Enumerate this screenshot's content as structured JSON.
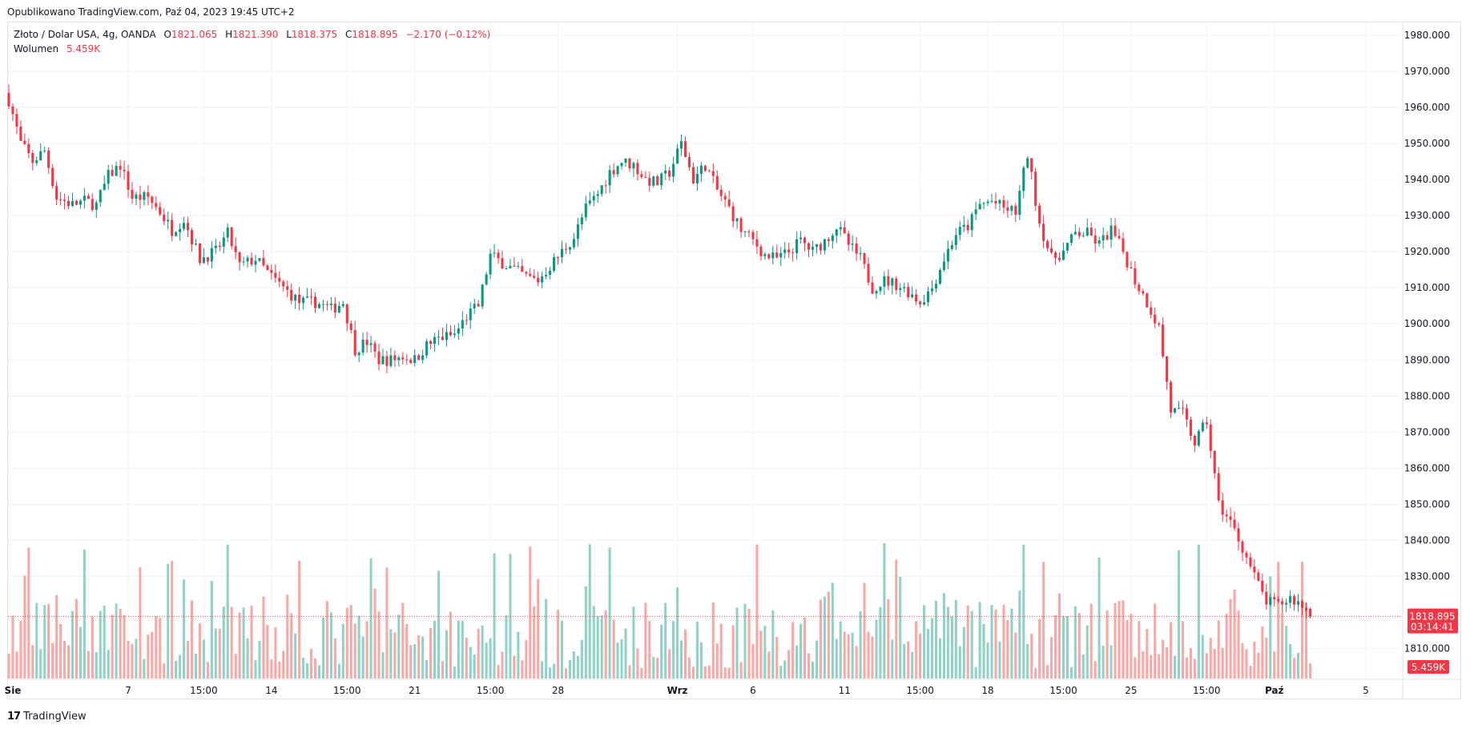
{
  "header": {
    "published": "Opublikowano TradingView.com, Paź 04, 2023 19:45 UTC+2"
  },
  "legend": {
    "symbol": "Złoto / Dolar USA, 4g, OANDA",
    "o_label": "O",
    "o_value": "1821.065",
    "h_label": "H",
    "h_value": "1821.390",
    "l_label": "L",
    "l_value": "1818.375",
    "c_label": "C",
    "c_value": "1818.895",
    "change": "−2.170 (−0.12%)",
    "volume_label": "Wolumen",
    "volume_value": "5.459K"
  },
  "footer": {
    "brand": "TradingView",
    "logo": "17"
  },
  "colors": {
    "up": "#089981",
    "down": "#f23645",
    "up_vol": "#92d2c6",
    "down_vol": "#f7a9a7",
    "grid": "#f0f3fa"
  },
  "chart_data": {
    "type": "candlestick",
    "price_axis": {
      "ticks": [
        "1980.000",
        "1970.000",
        "1960.000",
        "1950.000",
        "1940.000",
        "1930.000",
        "1920.000",
        "1910.000",
        "1900.000",
        "1890.000",
        "1880.000",
        "1870.000",
        "1860.000",
        "1850.000",
        "1840.000",
        "1830.000",
        "1810.000"
      ],
      "range": [
        1801.5,
        1983.5
      ]
    },
    "time_axis": {
      "ticks": [
        {
          "label": "Sie",
          "bold": true,
          "i": 0
        },
        {
          "label": "7",
          "bold": false,
          "i": 30
        },
        {
          "label": "15:00",
          "bold": false,
          "i": 49
        },
        {
          "label": "14",
          "bold": false,
          "i": 66
        },
        {
          "label": "15:00",
          "bold": false,
          "i": 85
        },
        {
          "label": "21",
          "bold": false,
          "i": 102
        },
        {
          "label": "15:00",
          "bold": false,
          "i": 121
        },
        {
          "label": "28",
          "bold": false,
          "i": 138
        },
        {
          "label": "Wrz",
          "bold": true,
          "i": 168
        },
        {
          "label": "6",
          "bold": false,
          "i": 187
        },
        {
          "label": "11",
          "bold": false,
          "i": 210
        },
        {
          "label": "15:00",
          "bold": false,
          "i": 229
        },
        {
          "label": "18",
          "bold": false,
          "i": 246
        },
        {
          "label": "15:00",
          "bold": false,
          "i": 265
        },
        {
          "label": "25",
          "bold": false,
          "i": 282
        },
        {
          "label": "15:00",
          "bold": false,
          "i": 301
        },
        {
          "label": "Paź",
          "bold": true,
          "i": 318
        },
        {
          "label": "5",
          "bold": false,
          "i": 341
        }
      ]
    },
    "last_price": {
      "price": "1818.895",
      "countdown": "03:14:41",
      "volume": "5.459K"
    },
    "candles": [],
    "close_path": [
      [
        0,
        1962
      ],
      [
        3,
        1950
      ],
      [
        6,
        1945
      ],
      [
        9,
        1948
      ],
      [
        12,
        1935
      ],
      [
        16,
        1933
      ],
      [
        19,
        1934
      ],
      [
        22,
        1933
      ],
      [
        25,
        1941
      ],
      [
        28,
        1944
      ],
      [
        31,
        1935
      ],
      [
        35,
        1935
      ],
      [
        38,
        1931
      ],
      [
        41,
        1926
      ],
      [
        44,
        1929
      ],
      [
        48,
        1918
      ],
      [
        52,
        1920
      ],
      [
        55,
        1925
      ],
      [
        58,
        1916
      ],
      [
        62,
        1918
      ],
      [
        66,
        1913
      ],
      [
        70,
        1909
      ],
      [
        73,
        1906
      ],
      [
        77,
        1906
      ],
      [
        81,
        1904
      ],
      [
        84,
        1906
      ],
      [
        87,
        1893
      ],
      [
        90,
        1895
      ],
      [
        93,
        1890
      ],
      [
        96,
        1890
      ],
      [
        99,
        1891
      ],
      [
        102,
        1890
      ],
      [
        105,
        1894
      ],
      [
        108,
        1896
      ],
      [
        112,
        1897
      ],
      [
        115,
        1902
      ],
      [
        118,
        1905
      ],
      [
        121,
        1919
      ],
      [
        124,
        1917
      ],
      [
        127,
        1915
      ],
      [
        130,
        1913
      ],
      [
        133,
        1912
      ],
      [
        136,
        1916
      ],
      [
        139,
        1920
      ],
      [
        142,
        1924
      ],
      [
        145,
        1932
      ],
      [
        148,
        1936
      ],
      [
        151,
        1942
      ],
      [
        154,
        1945
      ],
      [
        157,
        1944
      ],
      [
        160,
        1940
      ],
      [
        163,
        1939
      ],
      [
        166,
        1942
      ],
      [
        169,
        1950
      ],
      [
        172,
        1940
      ],
      [
        175,
        1944
      ],
      [
        178,
        1937
      ],
      [
        181,
        1932
      ],
      [
        184,
        1926
      ],
      [
        187,
        1923
      ],
      [
        190,
        1919
      ],
      [
        193,
        1918
      ],
      [
        196,
        1920
      ],
      [
        199,
        1923
      ],
      [
        202,
        1920
      ],
      [
        205,
        1923
      ],
      [
        208,
        1927
      ],
      [
        211,
        1922
      ],
      [
        214,
        1918
      ],
      [
        217,
        1910
      ],
      [
        220,
        1912
      ],
      [
        223,
        1911
      ],
      [
        226,
        1909
      ],
      [
        229,
        1906
      ],
      [
        232,
        1910
      ],
      [
        235,
        1918
      ],
      [
        238,
        1925
      ],
      [
        241,
        1927
      ],
      [
        244,
        1933
      ],
      [
        247,
        1934
      ],
      [
        250,
        1932
      ],
      [
        253,
        1931
      ],
      [
        256,
        1947
      ],
      [
        259,
        1928
      ],
      [
        262,
        1918
      ],
      [
        265,
        1920
      ],
      [
        268,
        1925
      ],
      [
        271,
        1925
      ],
      [
        274,
        1922
      ],
      [
        277,
        1926
      ],
      [
        280,
        1920
      ],
      [
        283,
        1912
      ],
      [
        286,
        1906
      ],
      [
        289,
        1899
      ],
      [
        292,
        1876
      ],
      [
        295,
        1875
      ],
      [
        298,
        1867
      ],
      [
        301,
        1873
      ],
      [
        304,
        1850
      ],
      [
        307,
        1845
      ],
      [
        310,
        1838
      ],
      [
        313,
        1830
      ],
      [
        316,
        1823
      ],
      [
        319,
        1822
      ],
      [
        322,
        1824
      ],
      [
        325,
        1822
      ],
      [
        327,
        1819
      ]
    ]
  }
}
